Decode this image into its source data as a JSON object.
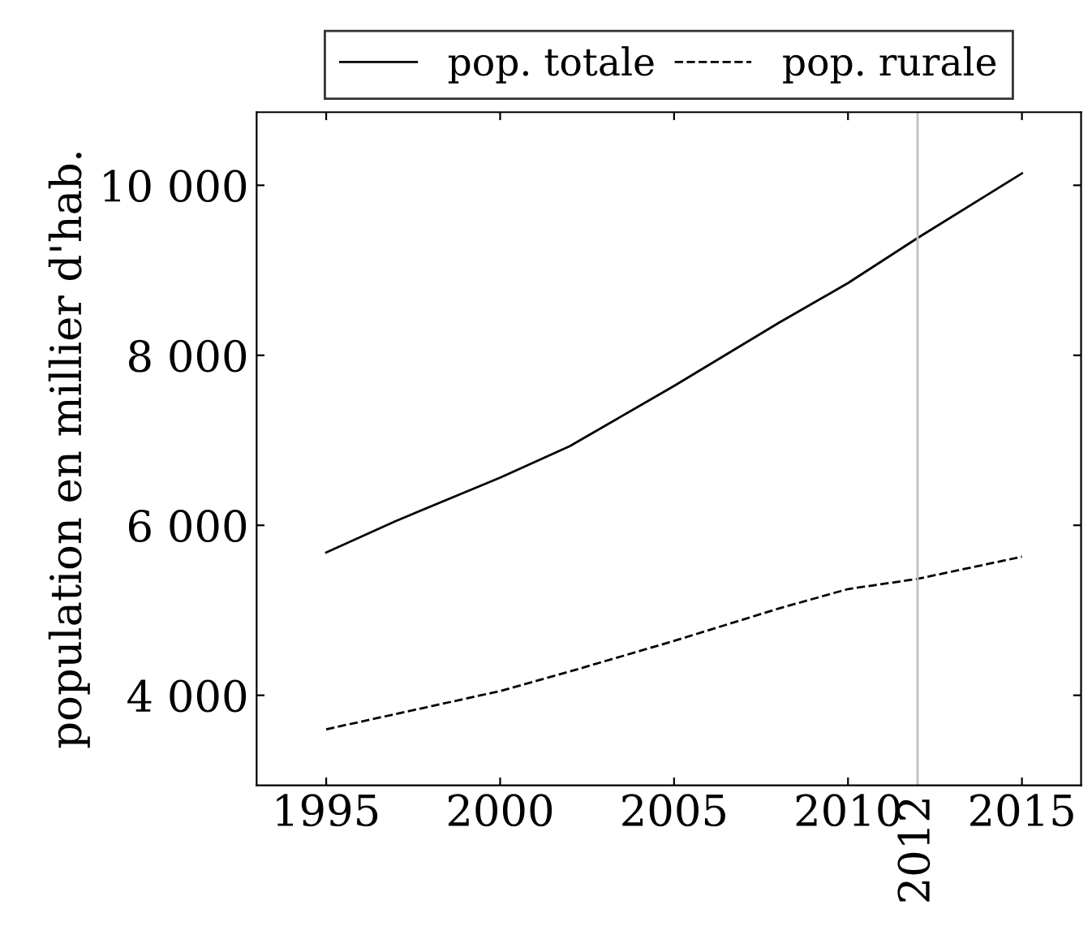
{
  "chart_data": {
    "type": "line",
    "ylabel": "population en millier d'hab.",
    "x": [
      1995,
      1997,
      2000,
      2002,
      2005,
      2008,
      2010,
      2012,
      2015
    ],
    "series": [
      {
        "name": "pop. totale",
        "color": "#000000",
        "line_style": "solid",
        "values": [
          5680,
          6050,
          6560,
          6930,
          7640,
          8380,
          8850,
          9380,
          10140
        ]
      },
      {
        "name": "pop. rurale",
        "color": "#000000",
        "line_style": "dashed",
        "values": [
          3600,
          3780,
          4050,
          4280,
          4640,
          5020,
          5250,
          5370,
          5630
        ]
      }
    ],
    "xlim": [
      1993,
      2016.7
    ],
    "ylim": [
      2940,
      10860
    ],
    "xticks": [
      1995,
      2000,
      2005,
      2010,
      2015
    ],
    "yticks": [
      {
        "value": 4000,
        "label": "4 000"
      },
      {
        "value": 6000,
        "label": "6 000"
      },
      {
        "value": 8000,
        "label": "8 000"
      },
      {
        "value": 10000,
        "label": "10 000"
      }
    ],
    "ref_lines": [
      {
        "axis": "x",
        "value": 2012,
        "label": "2012",
        "color": "#bfbfbf"
      }
    ],
    "legend": "top",
    "grid": false,
    "marker": "none"
  }
}
